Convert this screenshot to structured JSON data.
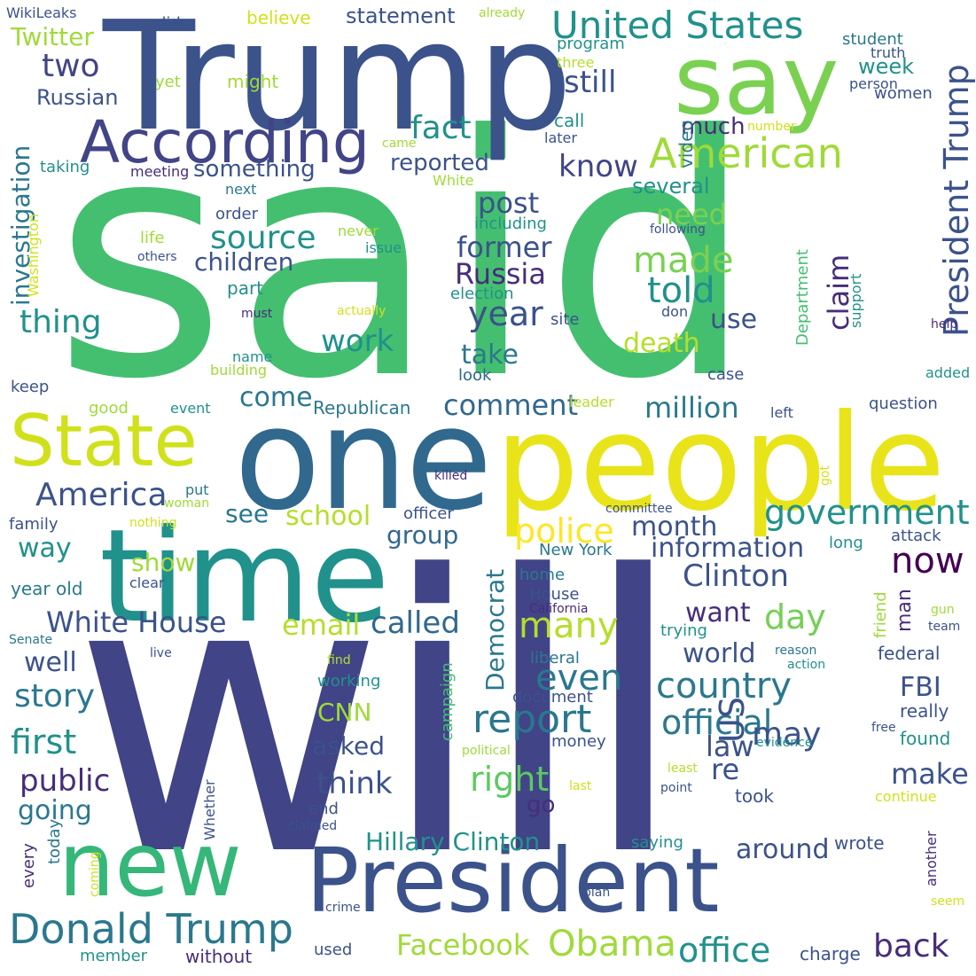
{
  "words": [
    {
      "text": "said",
      "color": "#44bf70"
    },
    {
      "text": "will",
      "color": "#414487"
    },
    {
      "text": "Trump",
      "color": "#3b528b"
    },
    {
      "text": "people",
      "color": "#e8e419"
    },
    {
      "text": "one",
      "color": "#31688e"
    },
    {
      "text": "time",
      "color": "#21918c"
    },
    {
      "text": "President",
      "color": "#3b528b"
    },
    {
      "text": "new",
      "color": "#35b779"
    },
    {
      "text": "say",
      "color": "#7ad151"
    },
    {
      "text": "According",
      "color": "#414487"
    },
    {
      "text": "State",
      "color": "#d0e11c"
    },
    {
      "text": "United States",
      "color": "#21918c"
    },
    {
      "text": "American",
      "color": "#a0da39"
    },
    {
      "text": "President Trump",
      "color": "#3b528b"
    },
    {
      "text": "Donald Trump",
      "color": "#2a788e"
    },
    {
      "text": "America",
      "color": "#3b528b"
    },
    {
      "text": "government",
      "color": "#21918c"
    },
    {
      "text": "country",
      "color": "#2a788e"
    },
    {
      "text": "report",
      "color": "#2a788e"
    },
    {
      "text": "official",
      "color": "#2a788e"
    },
    {
      "text": "Obama",
      "color": "#a0da39"
    },
    {
      "text": "office",
      "color": "#21918c"
    },
    {
      "text": "Facebook",
      "color": "#a0da39"
    },
    {
      "text": "back",
      "color": "#472d7b"
    },
    {
      "text": "now",
      "color": "#440154"
    },
    {
      "text": "day",
      "color": "#75d054"
    },
    {
      "text": "two",
      "color": "#414487"
    },
    {
      "text": "year",
      "color": "#3b528b"
    },
    {
      "text": "first",
      "color": "#21918c"
    },
    {
      "text": "story",
      "color": "#2a788e"
    },
    {
      "text": "public",
      "color": "#472d7b"
    },
    {
      "text": "think",
      "color": "#3b528b"
    },
    {
      "text": "make",
      "color": "#3b528b"
    },
    {
      "text": "right",
      "color": "#5ec962"
    },
    {
      "text": "many",
      "color": "#b5de2b"
    },
    {
      "text": "even",
      "color": "#2a788e"
    },
    {
      "text": "US",
      "color": "#3b528b"
    },
    {
      "text": "police",
      "color": "#fde725"
    },
    {
      "text": "Twitter",
      "color": "#a0da39"
    },
    {
      "text": "Russian",
      "color": "#3b528b"
    },
    {
      "text": "investigation",
      "color": "#2a788e"
    },
    {
      "text": "thing",
      "color": "#21918c"
    },
    {
      "text": "fact",
      "color": "#21918c"
    },
    {
      "text": "still",
      "color": "#3b528b"
    },
    {
      "text": "know",
      "color": "#414487"
    },
    {
      "text": "reported",
      "color": "#3b528b"
    },
    {
      "text": "something",
      "color": "#3b528b"
    },
    {
      "text": "source",
      "color": "#21918c"
    },
    {
      "text": "children",
      "color": "#3b528b"
    },
    {
      "text": "made",
      "color": "#7ad151"
    },
    {
      "text": "told",
      "color": "#21918c"
    },
    {
      "text": "claim",
      "color": "#472d7b"
    },
    {
      "text": "former",
      "color": "#3b528b"
    },
    {
      "text": "Russia",
      "color": "#472d7b"
    },
    {
      "text": "post",
      "color": "#3b528b"
    },
    {
      "text": "need",
      "color": "#7ad151"
    },
    {
      "text": "work",
      "color": "#21918c"
    },
    {
      "text": "take",
      "color": "#2a788e"
    },
    {
      "text": "use",
      "color": "#3b528b"
    },
    {
      "text": "death",
      "color": "#b5de2b"
    },
    {
      "text": "comment",
      "color": "#31688e"
    },
    {
      "text": "million",
      "color": "#2a788e"
    },
    {
      "text": "come",
      "color": "#2a788e"
    },
    {
      "text": "Republican",
      "color": "#2a788e"
    },
    {
      "text": "see",
      "color": "#2a788e"
    },
    {
      "text": "school",
      "color": "#b5de2b"
    },
    {
      "text": "month",
      "color": "#3b528b"
    },
    {
      "text": "group",
      "color": "#31688e"
    },
    {
      "text": "information",
      "color": "#3b528b"
    },
    {
      "text": "Clinton",
      "color": "#3b528b"
    },
    {
      "text": "White House",
      "color": "#3b528b"
    },
    {
      "text": "email",
      "color": "#b5de2b"
    },
    {
      "text": "called",
      "color": "#31688e"
    },
    {
      "text": "want",
      "color": "#472d7b"
    },
    {
      "text": "world",
      "color": "#3b528b"
    },
    {
      "text": "may",
      "color": "#3b528b"
    },
    {
      "text": "FBI",
      "color": "#3b528b"
    },
    {
      "text": "law",
      "color": "#3b528b"
    },
    {
      "text": "well",
      "color": "#3b528b"
    },
    {
      "text": "way",
      "color": "#21918c"
    },
    {
      "text": "show",
      "color": "#a0da39"
    },
    {
      "text": "CNN",
      "color": "#a0da39"
    },
    {
      "text": "asked",
      "color": "#3b528b"
    },
    {
      "text": "going",
      "color": "#2a788e"
    },
    {
      "text": "Hillary Clinton",
      "color": "#21918c"
    },
    {
      "text": "around",
      "color": "#3b528b"
    },
    {
      "text": "Democrat",
      "color": "#2a788e"
    },
    {
      "text": "week",
      "color": "#21918c"
    },
    {
      "text": "statement",
      "color": "#3b528b"
    },
    {
      "text": "student",
      "color": "#2a788e"
    },
    {
      "text": "women",
      "color": "#3b528b"
    },
    {
      "text": "truth",
      "color": "#3b528b"
    },
    {
      "text": "person",
      "color": "#3b528b"
    },
    {
      "text": "believe",
      "color": "#d0e11c"
    },
    {
      "text": "already",
      "color": "#a0da39"
    },
    {
      "text": "didn",
      "color": "#3b528b"
    },
    {
      "text": "program",
      "color": "#21918c"
    },
    {
      "text": "three",
      "color": "#b5de2b"
    },
    {
      "text": "yet",
      "color": "#a0da39"
    },
    {
      "text": "might",
      "color": "#a0da39"
    },
    {
      "text": "WikiLeaks",
      "color": "#3b528b"
    },
    {
      "text": "call",
      "color": "#21918c"
    },
    {
      "text": "number",
      "color": "#d0e11c"
    },
    {
      "text": "later",
      "color": "#3b528b"
    },
    {
      "text": "came",
      "color": "#a0da39"
    },
    {
      "text": "much",
      "color": "#472d7b"
    },
    {
      "text": "video",
      "color": "#2a788e"
    },
    {
      "text": "taking",
      "color": "#21918c"
    },
    {
      "text": "meeting",
      "color": "#472d7b"
    },
    {
      "text": "White",
      "color": "#a0da39"
    },
    {
      "text": "several",
      "color": "#21918c"
    },
    {
      "text": "next",
      "color": "#2a788e"
    },
    {
      "text": "order",
      "color": "#3b528b"
    },
    {
      "text": "including",
      "color": "#21918c"
    },
    {
      "text": "following",
      "color": "#3b528b"
    },
    {
      "text": "life",
      "color": "#a0da39"
    },
    {
      "text": "never",
      "color": "#a0da39"
    },
    {
      "text": "issue",
      "color": "#21918c"
    },
    {
      "text": "others",
      "color": "#3b528b"
    },
    {
      "text": "Washington",
      "color": "#d0e11c"
    },
    {
      "text": "part",
      "color": "#21918c"
    },
    {
      "text": "election",
      "color": "#21918c"
    },
    {
      "text": "Department",
      "color": "#44bf70"
    },
    {
      "text": "support",
      "color": "#21918c"
    },
    {
      "text": "must",
      "color": "#472d7b"
    },
    {
      "text": "actually",
      "color": "#d0e11c"
    },
    {
      "text": "don",
      "color": "#3b528b"
    },
    {
      "text": "help",
      "color": "#472d7b"
    },
    {
      "text": "site",
      "color": "#3b528b"
    },
    {
      "text": "name",
      "color": "#21918c"
    },
    {
      "text": "building",
      "color": "#a0da39"
    },
    {
      "text": "look",
      "color": "#31688e"
    },
    {
      "text": "case",
      "color": "#3b528b"
    },
    {
      "text": "added",
      "color": "#21918c"
    },
    {
      "text": "keep",
      "color": "#3b528b"
    },
    {
      "text": "good",
      "color": "#a0da39"
    },
    {
      "text": "event",
      "color": "#21918c"
    },
    {
      "text": "leader",
      "color": "#b5de2b"
    },
    {
      "text": "left",
      "color": "#3b528b"
    },
    {
      "text": "question",
      "color": "#3b528b"
    },
    {
      "text": "killed",
      "color": "#472d7b"
    },
    {
      "text": "got",
      "color": "#d0e11c"
    },
    {
      "text": "woman",
      "color": "#a0da39"
    },
    {
      "text": "committee",
      "color": "#3b528b"
    },
    {
      "text": "put",
      "color": "#2a788e"
    },
    {
      "text": "family",
      "color": "#3b528b"
    },
    {
      "text": "nothing",
      "color": "#d0e11c"
    },
    {
      "text": "officer",
      "color": "#3b528b"
    },
    {
      "text": "attack",
      "color": "#3b528b"
    },
    {
      "text": "long",
      "color": "#21918c"
    },
    {
      "text": "New York",
      "color": "#2a788e"
    },
    {
      "text": "home",
      "color": "#2a788e"
    },
    {
      "text": "House",
      "color": "#3b528b"
    },
    {
      "text": "California",
      "color": "#472d7b"
    },
    {
      "text": "clear",
      "color": "#3b528b"
    },
    {
      "text": "year old",
      "color": "#2a788e"
    },
    {
      "text": "man",
      "color": "#472d7b"
    },
    {
      "text": "friend",
      "color": "#a0da39"
    },
    {
      "text": "gun",
      "color": "#a0da39"
    },
    {
      "text": "team",
      "color": "#3b528b"
    },
    {
      "text": "Senate",
      "color": "#2a788e"
    },
    {
      "text": "live",
      "color": "#3b528b"
    },
    {
      "text": "trying",
      "color": "#21918c"
    },
    {
      "text": "reason",
      "color": "#2a788e"
    },
    {
      "text": "action",
      "color": "#21918c"
    },
    {
      "text": "find",
      "color": "#b5de2b"
    },
    {
      "text": "liberal",
      "color": "#2a788e"
    },
    {
      "text": "federal",
      "color": "#3b528b"
    },
    {
      "text": "working",
      "color": "#21918c"
    },
    {
      "text": "campaign",
      "color": "#44bf70"
    },
    {
      "text": "document",
      "color": "#3b528b"
    },
    {
      "text": "really",
      "color": "#3b528b"
    },
    {
      "text": "money",
      "color": "#3b528b"
    },
    {
      "text": "found",
      "color": "#21918c"
    },
    {
      "text": "evidence",
      "color": "#21918c"
    },
    {
      "text": "free",
      "color": "#3b528b"
    },
    {
      "text": "political",
      "color": "#a0da39"
    },
    {
      "text": "least",
      "color": "#b5de2b"
    },
    {
      "text": "re",
      "color": "#3b528b"
    },
    {
      "text": "go",
      "color": "#472d7b"
    },
    {
      "text": "last",
      "color": "#d0e11c"
    },
    {
      "text": "point",
      "color": "#3b528b"
    },
    {
      "text": "took",
      "color": "#3b528b"
    },
    {
      "text": "Whether",
      "color": "#3b528b"
    },
    {
      "text": "end",
      "color": "#3b528b"
    },
    {
      "text": "claimed",
      "color": "#3b528b"
    },
    {
      "text": "continue",
      "color": "#d0e11c"
    },
    {
      "text": "every",
      "color": "#472d7b"
    },
    {
      "text": "today",
      "color": "#2a788e"
    },
    {
      "text": "coming",
      "color": "#d0e11c"
    },
    {
      "text": "saying",
      "color": "#21918c"
    },
    {
      "text": "wrote",
      "color": "#3b528b"
    },
    {
      "text": "another",
      "color": "#472d7b"
    },
    {
      "text": "crime",
      "color": "#3b528b"
    },
    {
      "text": "plan",
      "color": "#3b528b"
    },
    {
      "text": "seem",
      "color": "#d0e11c"
    },
    {
      "text": "member",
      "color": "#21918c"
    },
    {
      "text": "without",
      "color": "#472d7b"
    },
    {
      "text": "used",
      "color": "#3b528b"
    },
    {
      "text": "charge",
      "color": "#3b528b"
    }
  ]
}
